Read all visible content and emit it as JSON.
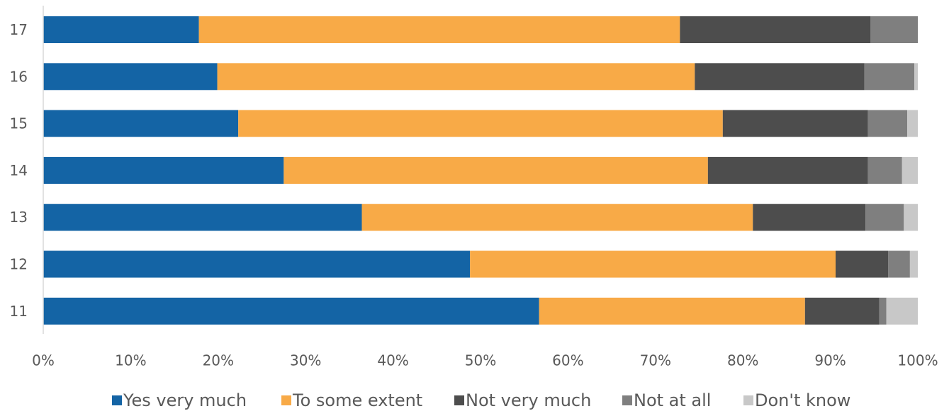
{
  "chart_data": {
    "type": "bar",
    "orientation": "horizontal",
    "stacked": "percent",
    "categories": [
      "17",
      "16",
      "15",
      "14",
      "13",
      "12",
      "11"
    ],
    "series": [
      {
        "name": "Yes very much",
        "color": "#1464a5",
        "values": [
          17.8,
          19.9,
          22.3,
          27.5,
          36.5,
          48.8,
          56.7
        ]
      },
      {
        "name": "To some extent",
        "color": "#f8aa47",
        "values": [
          55.0,
          54.6,
          55.4,
          48.5,
          44.8,
          41.8,
          30.4
        ]
      },
      {
        "name": "Not very much",
        "color": "#4d4d4d",
        "values": [
          21.8,
          19.4,
          16.6,
          18.3,
          12.9,
          6.0,
          8.5
        ]
      },
      {
        "name": "Not at all",
        "color": "#7f7f7f",
        "values": [
          5.4,
          5.7,
          4.5,
          3.9,
          4.4,
          2.5,
          0.8
        ]
      },
      {
        "name": "Don't know",
        "color": "#c8c8c8",
        "values": [
          0.0,
          0.4,
          1.2,
          1.8,
          1.6,
          0.9,
          3.6
        ]
      }
    ],
    "x_ticks": [
      "0%",
      "10%",
      "20%",
      "30%",
      "40%",
      "50%",
      "60%",
      "70%",
      "80%",
      "90%",
      "100%"
    ],
    "xlim": [
      0,
      100
    ],
    "title": "",
    "xlabel": "",
    "ylabel": "",
    "grid": false,
    "legend_position": "bottom"
  }
}
